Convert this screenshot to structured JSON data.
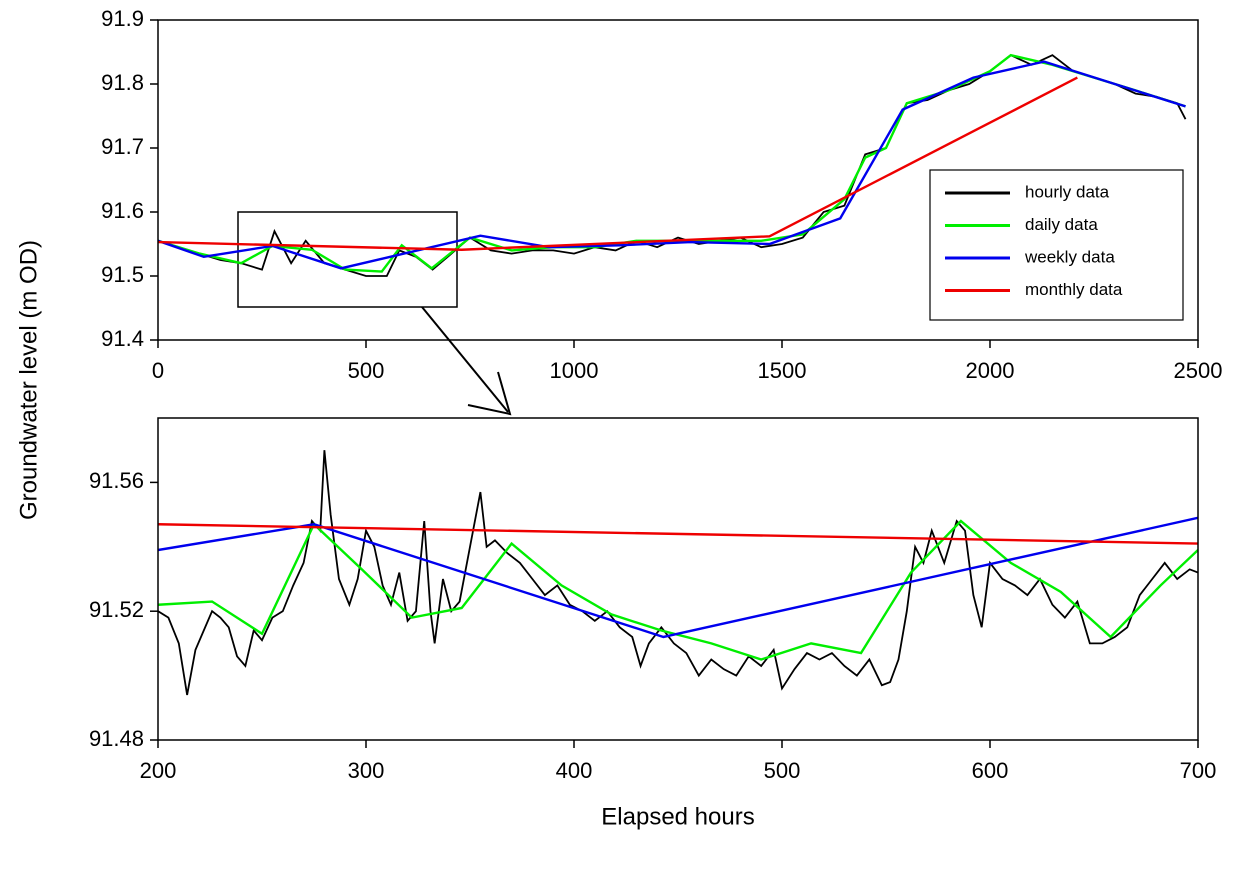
{
  "chart_data": [
    {
      "type": "line",
      "y_label": "Groundwater level (m OD)",
      "legend": "right",
      "xlim": [
        0,
        2500
      ],
      "xticks": [
        0,
        500,
        1000,
        1500,
        2000,
        2500
      ],
      "ylim": [
        91.4,
        91.9
      ],
      "yticks": [
        91.4,
        91.5,
        91.6,
        91.7,
        91.8,
        91.9
      ],
      "series": [
        {
          "name": "hourly data",
          "color": "#000000",
          "x": [
            0,
            50,
            100,
            150,
            200,
            250,
            280,
            320,
            355,
            400,
            450,
            500,
            550,
            580,
            620,
            660,
            700,
            750,
            800,
            850,
            900,
            950,
            1000,
            1050,
            1100,
            1150,
            1200,
            1250,
            1300,
            1350,
            1400,
            1450,
            1500,
            1550,
            1600,
            1650,
            1700,
            1750,
            1800,
            1850,
            1900,
            1950,
            2000,
            2050,
            2100,
            2150,
            2200,
            2250,
            2300,
            2350,
            2400,
            2450,
            2470
          ],
          "values": [
            91.555,
            91.545,
            91.535,
            91.525,
            91.52,
            91.51,
            91.57,
            91.52,
            91.555,
            91.52,
            91.51,
            91.5,
            91.5,
            91.54,
            91.53,
            91.51,
            91.532,
            91.56,
            91.54,
            91.535,
            91.54,
            91.54,
            91.535,
            91.545,
            91.54,
            91.555,
            91.545,
            91.56,
            91.55,
            91.555,
            91.56,
            91.545,
            91.55,
            91.56,
            91.6,
            91.61,
            91.69,
            91.7,
            91.77,
            91.775,
            91.79,
            91.8,
            91.82,
            91.845,
            91.83,
            91.845,
            91.82,
            91.81,
            91.8,
            91.785,
            91.78,
            91.77,
            91.745
          ]
        },
        {
          "name": "daily data",
          "color": "#00ee00",
          "x": [
            0,
            100,
            200,
            275,
            370,
            450,
            538,
            586,
            658,
            750,
            850,
            950,
            1050,
            1150,
            1250,
            1350,
            1450,
            1550,
            1650,
            1700,
            1750,
            1800,
            1900,
            2000,
            2050,
            2150,
            2250,
            2350,
            2470
          ],
          "values": [
            91.555,
            91.535,
            91.52,
            91.547,
            91.541,
            91.51,
            91.507,
            91.548,
            91.512,
            91.56,
            91.54,
            91.545,
            91.545,
            91.555,
            91.555,
            91.555,
            91.555,
            91.565,
            91.62,
            91.685,
            91.7,
            91.77,
            91.79,
            91.82,
            91.845,
            91.83,
            91.81,
            91.79,
            91.765
          ]
        },
        {
          "name": "weekly data",
          "color": "#0000ee",
          "x": [
            0,
            110,
            275,
            440,
            775,
            940,
            1110,
            1280,
            1470,
            1640,
            1790,
            1960,
            2130,
            2470
          ],
          "values": [
            91.555,
            91.53,
            91.547,
            91.512,
            91.563,
            91.545,
            91.548,
            91.553,
            91.55,
            91.59,
            91.76,
            91.81,
            91.835,
            91.765
          ]
        },
        {
          "name": "monthly data",
          "color": "#ee0000",
          "x": [
            0,
            730,
            1470,
            2210
          ],
          "values": [
            91.553,
            91.541,
            91.562,
            91.81
          ]
        }
      ]
    },
    {
      "type": "line",
      "x_label": "Elapsed hours",
      "xlim": [
        200,
        700
      ],
      "xticks": [
        200,
        300,
        400,
        500,
        600,
        700
      ],
      "ylim": [
        91.48,
        91.58
      ],
      "yticks": [
        91.48,
        91.52,
        91.56
      ],
      "series": [
        {
          "color": "#000000",
          "x": [
            200,
            205,
            210,
            214,
            218,
            222,
            226,
            230,
            234,
            238,
            242,
            246,
            250,
            255,
            260,
            265,
            270,
            274,
            278,
            280,
            283,
            287,
            292,
            296,
            300,
            304,
            308,
            312,
            316,
            320,
            324,
            328,
            331,
            333,
            337,
            341,
            345,
            350,
            355,
            358,
            362,
            368,
            374,
            380,
            386,
            392,
            398,
            404,
            410,
            416,
            422,
            428,
            432,
            436,
            442,
            448,
            454,
            460,
            466,
            472,
            478,
            484,
            490,
            496,
            500,
            506,
            512,
            518,
            524,
            530,
            536,
            542,
            548,
            552,
            556,
            560,
            564,
            568,
            572,
            578,
            584,
            588,
            592,
            596,
            600,
            606,
            612,
            618,
            624,
            630,
            636,
            642,
            648,
            654,
            660,
            666,
            672,
            678,
            684,
            690,
            696,
            700
          ],
          "values": [
            91.52,
            91.518,
            91.51,
            91.494,
            91.508,
            91.514,
            91.52,
            91.518,
            91.515,
            91.506,
            91.503,
            91.514,
            91.511,
            91.518,
            91.52,
            91.528,
            91.535,
            91.548,
            91.545,
            91.57,
            91.55,
            91.53,
            91.522,
            91.53,
            91.545,
            91.54,
            91.528,
            91.522,
            91.532,
            91.517,
            91.52,
            91.548,
            91.52,
            91.51,
            91.53,
            91.52,
            91.523,
            91.54,
            91.557,
            91.54,
            91.542,
            91.538,
            91.535,
            91.53,
            91.525,
            91.528,
            91.522,
            91.52,
            91.517,
            91.52,
            91.515,
            91.512,
            91.503,
            91.51,
            91.515,
            91.51,
            91.507,
            91.5,
            91.505,
            91.502,
            91.5,
            91.506,
            91.503,
            91.508,
            91.496,
            91.502,
            91.507,
            91.505,
            91.507,
            91.503,
            91.5,
            91.505,
            91.497,
            91.498,
            91.505,
            91.52,
            91.54,
            91.535,
            91.545,
            91.535,
            91.548,
            91.545,
            91.525,
            91.515,
            91.535,
            91.53,
            91.528,
            91.525,
            91.53,
            91.522,
            91.518,
            91.523,
            91.51,
            91.51,
            91.512,
            91.515,
            91.525,
            91.53,
            91.535,
            91.53,
            91.533,
            91.532
          ]
        },
        {
          "color": "#00ee00",
          "x": [
            200,
            226,
            250,
            275,
            298,
            322,
            346,
            370,
            394,
            418,
            442,
            466,
            490,
            514,
            538,
            562,
            586,
            610,
            634,
            658,
            682,
            700
          ],
          "values": [
            91.522,
            91.523,
            91.513,
            91.547,
            91.533,
            91.518,
            91.521,
            91.541,
            91.528,
            91.519,
            91.514,
            91.51,
            91.505,
            91.51,
            91.507,
            91.532,
            91.548,
            91.535,
            91.526,
            91.512,
            91.528,
            91.539
          ]
        },
        {
          "color": "#0000ee",
          "x": [
            200,
            275,
            443,
            700
          ],
          "values": [
            91.539,
            91.547,
            91.512,
            91.549
          ]
        },
        {
          "color": "#ee0000",
          "x": [
            200,
            700
          ],
          "values": [
            91.547,
            91.541
          ]
        }
      ]
    }
  ]
}
